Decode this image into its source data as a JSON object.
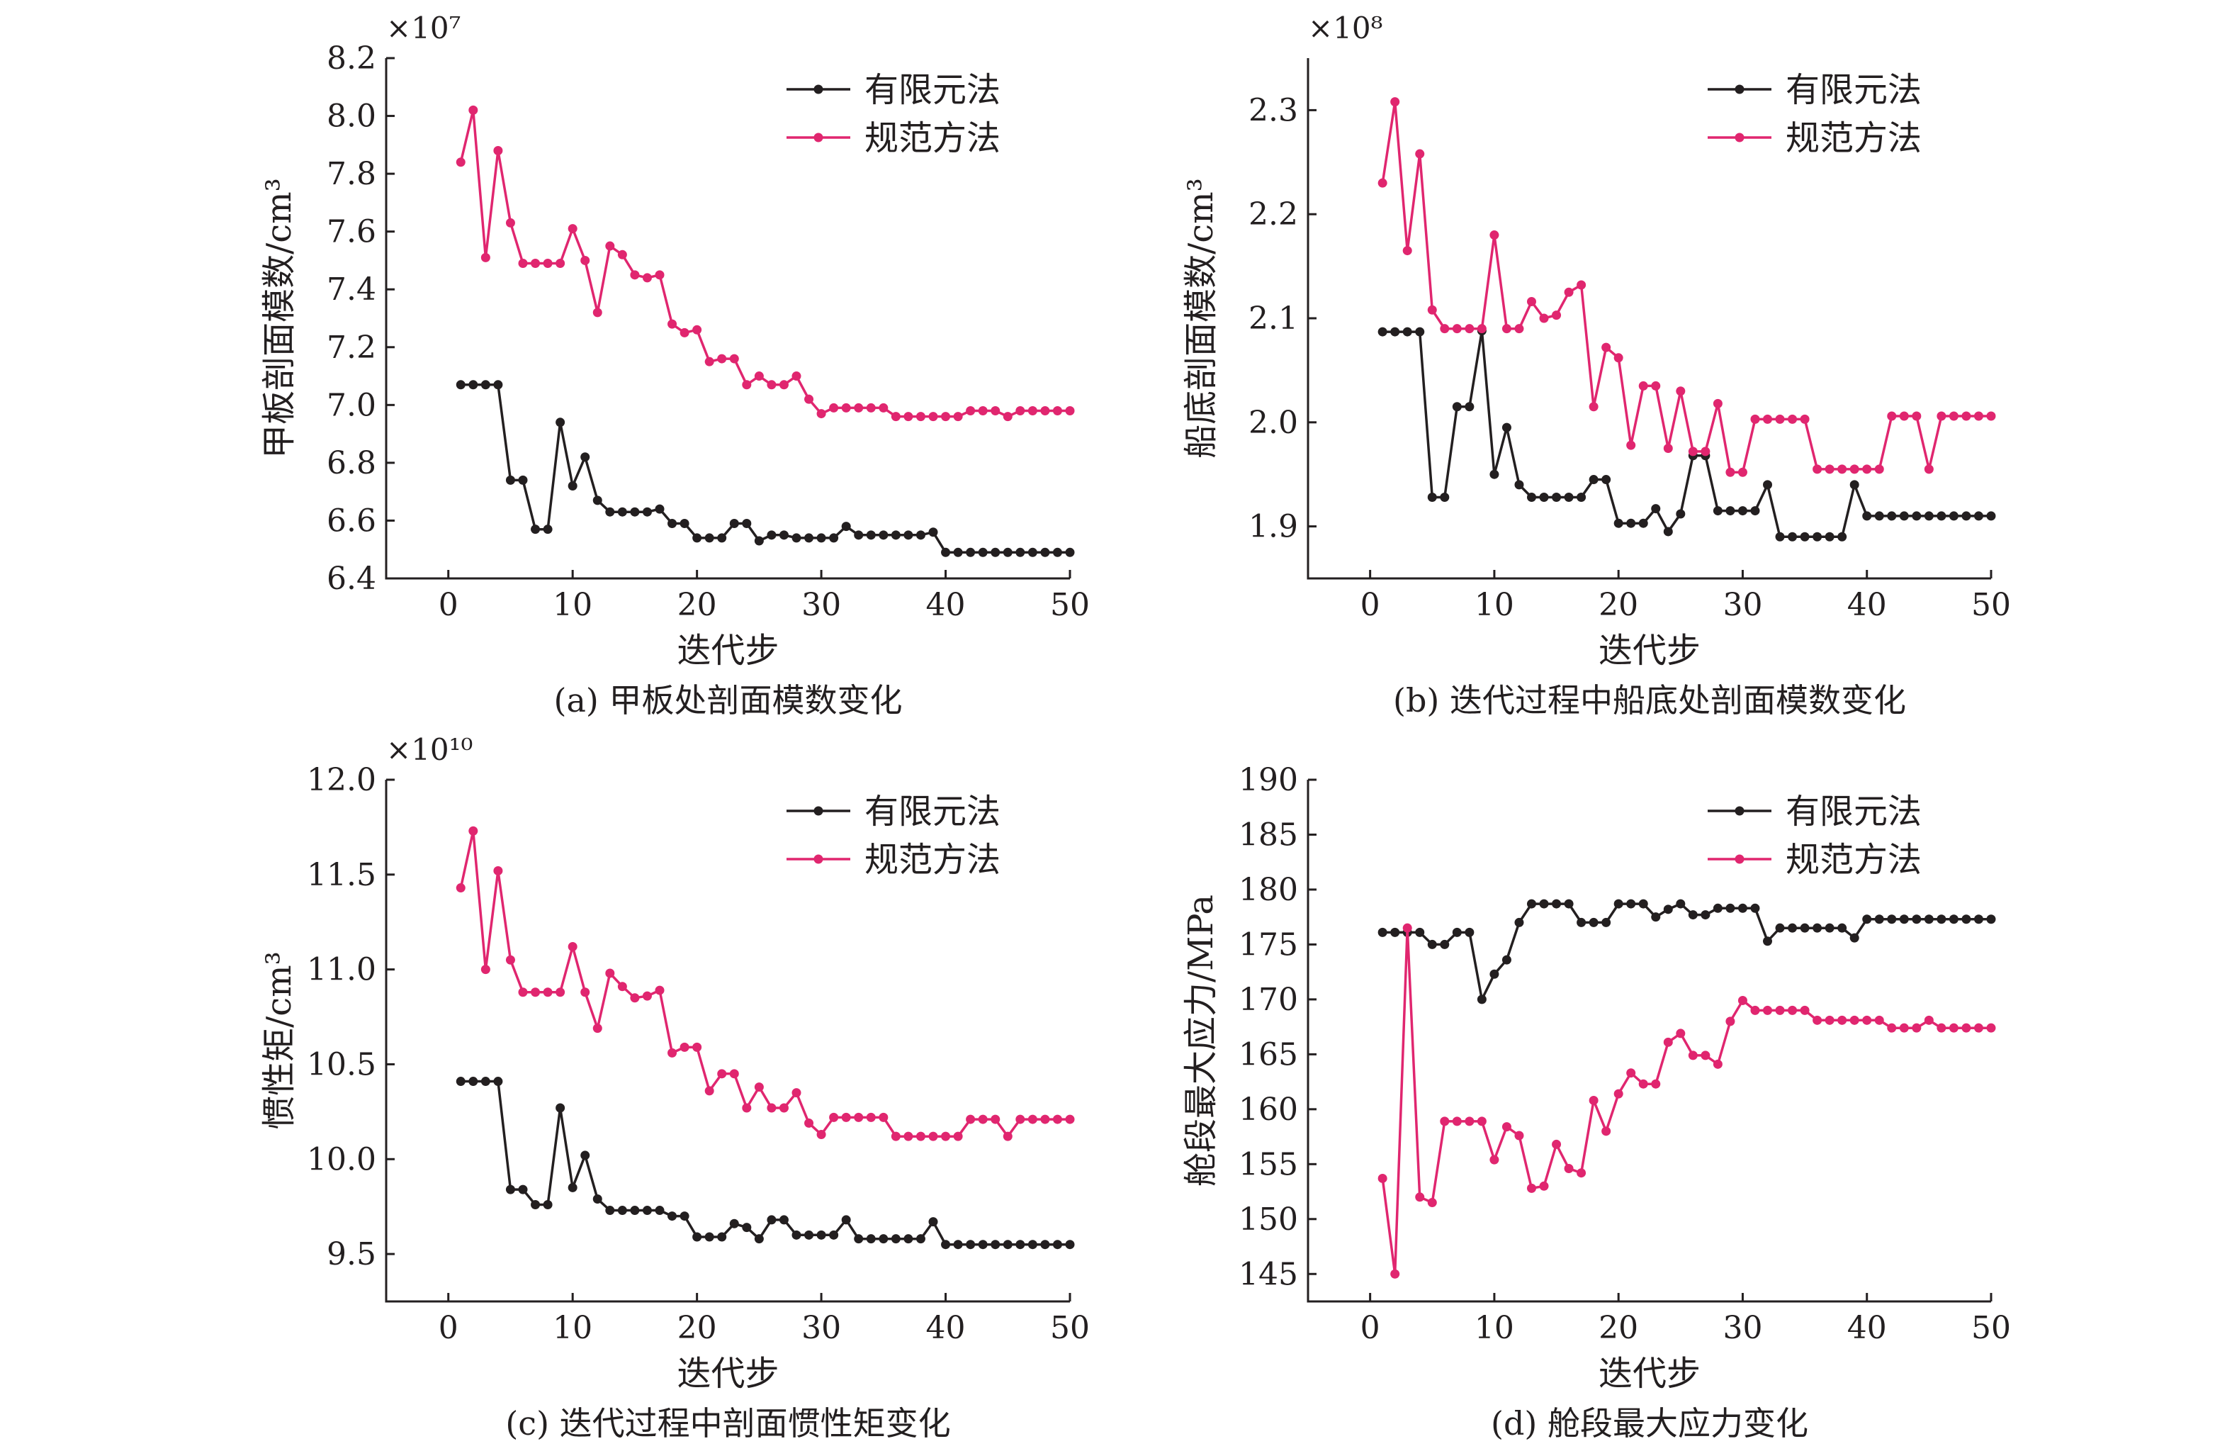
{
  "legend": [
    "有限元法",
    "规范方法"
  ],
  "colors": {
    "fem": "#231f20",
    "spec": "#e0266f",
    "spec_alt": "#e84a2a"
  },
  "chart_data": [
    {
      "type": "line",
      "caption": "(a) 甲板处剖面模数变化",
      "xlabel": "迭代步",
      "ylabel": "甲板剖面模数/cm³",
      "multiplier": "×10⁷",
      "xlim": [
        -5,
        50
      ],
      "ylim": [
        6.4,
        8.2
      ],
      "xticks": [
        0,
        10,
        20,
        30,
        40,
        50
      ],
      "yticks": [
        6.4,
        6.6,
        6.8,
        7.0,
        7.2,
        7.4,
        7.6,
        7.8,
        8.0,
        8.2
      ],
      "ytick_labels": [
        "6.4",
        "6.6",
        "6.8",
        "7.0",
        "7.2",
        "7.4",
        "7.6",
        "7.8",
        "8.0",
        "8.2"
      ],
      "legend": "top-right",
      "grid": false,
      "x": [
        1,
        2,
        3,
        4,
        5,
        6,
        7,
        8,
        9,
        10,
        11,
        12,
        13,
        14,
        15,
        16,
        17,
        18,
        19,
        20,
        21,
        22,
        23,
        24,
        25,
        26,
        27,
        28,
        29,
        30,
        31,
        32,
        33,
        34,
        35,
        36,
        37,
        38,
        39,
        40,
        41,
        42,
        43,
        44,
        45,
        46,
        47,
        48,
        49,
        50
      ],
      "series": [
        {
          "name": "有限元法",
          "values": [
            7.07,
            7.07,
            7.07,
            7.07,
            6.74,
            6.74,
            6.57,
            6.57,
            6.94,
            6.72,
            6.82,
            6.67,
            6.63,
            6.63,
            6.63,
            6.63,
            6.64,
            6.59,
            6.59,
            6.54,
            6.54,
            6.54,
            6.59,
            6.59,
            6.53,
            6.55,
            6.55,
            6.54,
            6.54,
            6.54,
            6.54,
            6.58,
            6.55,
            6.55,
            6.55,
            6.55,
            6.55,
            6.55,
            6.56,
            6.49,
            6.49,
            6.49,
            6.49,
            6.49,
            6.49,
            6.49,
            6.49,
            6.49,
            6.49,
            6.49
          ]
        },
        {
          "name": "规范方法",
          "values": [
            7.84,
            8.02,
            7.51,
            7.88,
            7.63,
            7.49,
            7.49,
            7.49,
            7.49,
            7.61,
            7.5,
            7.32,
            7.55,
            7.52,
            7.45,
            7.44,
            7.45,
            7.28,
            7.25,
            7.26,
            7.15,
            7.16,
            7.16,
            7.07,
            7.1,
            7.07,
            7.07,
            7.1,
            7.02,
            6.97,
            6.99,
            6.99,
            6.99,
            6.99,
            6.99,
            6.96,
            6.96,
            6.96,
            6.96,
            6.96,
            6.96,
            6.98,
            6.98,
            6.98,
            6.96,
            6.98,
            6.98,
            6.98,
            6.98,
            6.98
          ]
        }
      ]
    },
    {
      "type": "line",
      "caption": "(b) 迭代过程中船底处剖面模数变化",
      "xlabel": "迭代步",
      "ylabel": "船底剖面模数/cm³",
      "multiplier": "×10⁸",
      "xlim": [
        -5,
        50
      ],
      "ylim": [
        1.85,
        2.35
      ],
      "xticks": [
        0,
        10,
        20,
        30,
        40,
        50
      ],
      "yticks": [
        1.9,
        2.0,
        2.1,
        2.2,
        2.3
      ],
      "ytick_labels": [
        "1.9",
        "2.0",
        "2.1",
        "2.2",
        "2.3"
      ],
      "legend": "top-right",
      "grid": false,
      "x": [
        1,
        2,
        3,
        4,
        5,
        6,
        7,
        8,
        9,
        10,
        11,
        12,
        13,
        14,
        15,
        16,
        17,
        18,
        19,
        20,
        21,
        22,
        23,
        24,
        25,
        26,
        27,
        28,
        29,
        30,
        31,
        32,
        33,
        34,
        35,
        36,
        37,
        38,
        39,
        40,
        41,
        42,
        43,
        44,
        45,
        46,
        47,
        48,
        49,
        50
      ],
      "series": [
        {
          "name": "有限元法",
          "values": [
            2.087,
            2.087,
            2.087,
            2.087,
            1.928,
            1.928,
            2.015,
            2.015,
            2.088,
            1.95,
            1.995,
            1.94,
            1.928,
            1.928,
            1.928,
            1.928,
            1.928,
            1.945,
            1.945,
            1.903,
            1.903,
            1.903,
            1.917,
            1.895,
            1.912,
            1.968,
            1.968,
            1.915,
            1.915,
            1.915,
            1.915,
            1.94,
            1.89,
            1.89,
            1.89,
            1.89,
            1.89,
            1.89,
            1.94,
            1.91,
            1.91,
            1.91,
            1.91,
            1.91,
            1.91,
            1.91,
            1.91,
            1.91,
            1.91,
            1.91
          ]
        },
        {
          "name": "规范方法",
          "values": [
            2.23,
            2.308,
            2.165,
            2.258,
            2.108,
            2.09,
            2.09,
            2.09,
            2.09,
            2.18,
            2.09,
            2.09,
            2.116,
            2.1,
            2.103,
            2.125,
            2.132,
            2.015,
            2.072,
            2.062,
            1.978,
            2.035,
            2.035,
            1.975,
            2.03,
            1.972,
            1.972,
            2.018,
            1.952,
            1.952,
            2.003,
            2.003,
            2.003,
            2.003,
            2.003,
            1.955,
            1.955,
            1.955,
            1.955,
            1.955,
            1.955,
            2.006,
            2.006,
            2.006,
            1.955,
            2.006,
            2.006,
            2.006,
            2.006,
            2.006
          ]
        }
      ]
    },
    {
      "type": "line",
      "caption": "(c) 迭代过程中剖面惯性矩变化",
      "xlabel": "迭代步",
      "ylabel": "惯性矩/cm³",
      "multiplier": "×10¹⁰",
      "xlim": [
        -5,
        50
      ],
      "ylim": [
        9.25,
        12.0
      ],
      "xticks": [
        0,
        10,
        20,
        30,
        40,
        50
      ],
      "yticks": [
        9.5,
        10.0,
        10.5,
        11.0,
        11.5,
        12.0
      ],
      "ytick_labels": [
        "9.5",
        "10.0",
        "10.5",
        "11.0",
        "11.5",
        "12.0"
      ],
      "legend": "top-right",
      "grid": false,
      "x": [
        1,
        2,
        3,
        4,
        5,
        6,
        7,
        8,
        9,
        10,
        11,
        12,
        13,
        14,
        15,
        16,
        17,
        18,
        19,
        20,
        21,
        22,
        23,
        24,
        25,
        26,
        27,
        28,
        29,
        30,
        31,
        32,
        33,
        34,
        35,
        36,
        37,
        38,
        39,
        40,
        41,
        42,
        43,
        44,
        45,
        46,
        47,
        48,
        49,
        50
      ],
      "series": [
        {
          "name": "有限元法",
          "values": [
            10.41,
            10.41,
            10.41,
            10.41,
            9.84,
            9.84,
            9.76,
            9.76,
            10.27,
            9.85,
            10.02,
            9.79,
            9.73,
            9.73,
            9.73,
            9.73,
            9.73,
            9.7,
            9.7,
            9.59,
            9.59,
            9.59,
            9.66,
            9.64,
            9.58,
            9.68,
            9.68,
            9.6,
            9.6,
            9.6,
            9.6,
            9.68,
            9.58,
            9.58,
            9.58,
            9.58,
            9.58,
            9.58,
            9.67,
            9.55,
            9.55,
            9.55,
            9.55,
            9.55,
            9.55,
            9.55,
            9.55,
            9.55,
            9.55,
            9.55
          ]
        },
        {
          "name": "规范方法",
          "values": [
            11.43,
            11.73,
            11.0,
            11.52,
            11.05,
            10.88,
            10.88,
            10.88,
            10.88,
            11.12,
            10.88,
            10.69,
            10.98,
            10.91,
            10.85,
            10.86,
            10.89,
            10.56,
            10.59,
            10.59,
            10.36,
            10.45,
            10.45,
            10.27,
            10.38,
            10.27,
            10.27,
            10.35,
            10.19,
            10.13,
            10.22,
            10.22,
            10.22,
            10.22,
            10.22,
            10.12,
            10.12,
            10.12,
            10.12,
            10.12,
            10.12,
            10.21,
            10.21,
            10.21,
            10.12,
            10.21,
            10.21,
            10.21,
            10.21,
            10.21
          ]
        }
      ]
    },
    {
      "type": "line",
      "caption": "(d) 舱段最大应力变化",
      "xlabel": "迭代步",
      "ylabel": "舱段最大应力/MPa",
      "multiplier": "",
      "xlim": [
        -5,
        50
      ],
      "ylim": [
        142.5,
        190
      ],
      "xticks": [
        0,
        10,
        20,
        30,
        40,
        50
      ],
      "yticks": [
        145,
        150,
        155,
        160,
        165,
        170,
        175,
        180,
        185,
        190
      ],
      "ytick_labels": [
        "145",
        "150",
        "155",
        "160",
        "165",
        "170",
        "175",
        "180",
        "185",
        "190"
      ],
      "legend": "top-right",
      "grid": false,
      "x": [
        1,
        2,
        3,
        4,
        5,
        6,
        7,
        8,
        9,
        10,
        11,
        12,
        13,
        14,
        15,
        16,
        17,
        18,
        19,
        20,
        21,
        22,
        23,
        24,
        25,
        26,
        27,
        28,
        29,
        30,
        31,
        32,
        33,
        34,
        35,
        36,
        37,
        38,
        39,
        40,
        41,
        42,
        43,
        44,
        45,
        46,
        47,
        48,
        49,
        50
      ],
      "series": [
        {
          "name": "有限元法",
          "values": [
            176.1,
            176.1,
            176.1,
            176.1,
            175.0,
            175.0,
            176.1,
            176.1,
            170.0,
            172.3,
            173.6,
            177.0,
            178.7,
            178.7,
            178.7,
            178.7,
            177.0,
            177.0,
            177.0,
            178.7,
            178.7,
            178.7,
            177.5,
            178.2,
            178.7,
            177.7,
            177.7,
            178.3,
            178.3,
            178.3,
            178.3,
            175.3,
            176.5,
            176.5,
            176.5,
            176.5,
            176.5,
            176.5,
            175.6,
            177.3,
            177.3,
            177.3,
            177.3,
            177.3,
            177.3,
            177.3,
            177.3,
            177.3,
            177.3,
            177.3
          ]
        },
        {
          "name": "规范方法",
          "values": [
            153.7,
            145.0,
            176.5,
            152.0,
            151.5,
            158.9,
            158.9,
            158.9,
            158.9,
            155.4,
            158.4,
            157.6,
            152.8,
            153.0,
            156.8,
            154.6,
            154.2,
            160.8,
            158.0,
            161.4,
            163.3,
            162.3,
            162.3,
            166.1,
            166.9,
            164.9,
            164.9,
            164.1,
            168.0,
            169.9,
            169.0,
            169.0,
            169.0,
            169.0,
            169.0,
            168.1,
            168.1,
            168.1,
            168.1,
            168.1,
            168.1,
            167.4,
            167.4,
            167.4,
            168.1,
            167.4,
            167.4,
            167.4,
            167.4,
            167.4
          ]
        }
      ]
    }
  ]
}
